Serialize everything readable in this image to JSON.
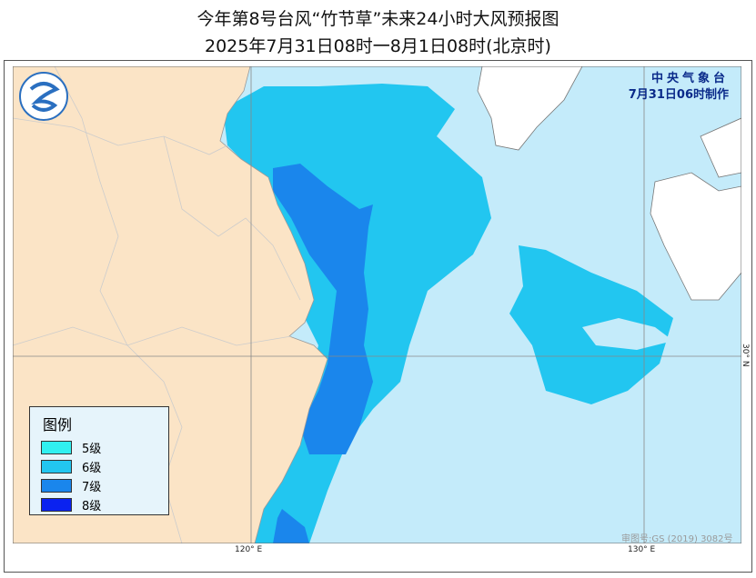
{
  "title": "今年第8号台风“竹节草”未来24小时大风预报图",
  "subtitle": "2025年7月31日08时一8月1日08时(北京时)",
  "agency": {
    "name": "中央气象台",
    "issued": "7月31日06时制作"
  },
  "approval": "审图号:GS (2019) 3082号",
  "axes": {
    "lon_labels": [
      "120° E",
      "130° E"
    ],
    "lat_labels": [
      "30° N"
    ]
  },
  "colors": {
    "land": "#fbe4c6",
    "sea": "#c4ebfa",
    "level5": "#30f0f0",
    "level6": "#22c6f0",
    "level7": "#1a86ec",
    "level8": "#0a22f0"
  },
  "legend": {
    "title": "图例",
    "items": [
      {
        "label": "5级",
        "color": "#30f0f0"
      },
      {
        "label": "6级",
        "color": "#22c6f0"
      },
      {
        "label": "7级",
        "color": "#1a86ec"
      },
      {
        "label": "8级",
        "color": "#0a22f0"
      }
    ]
  }
}
